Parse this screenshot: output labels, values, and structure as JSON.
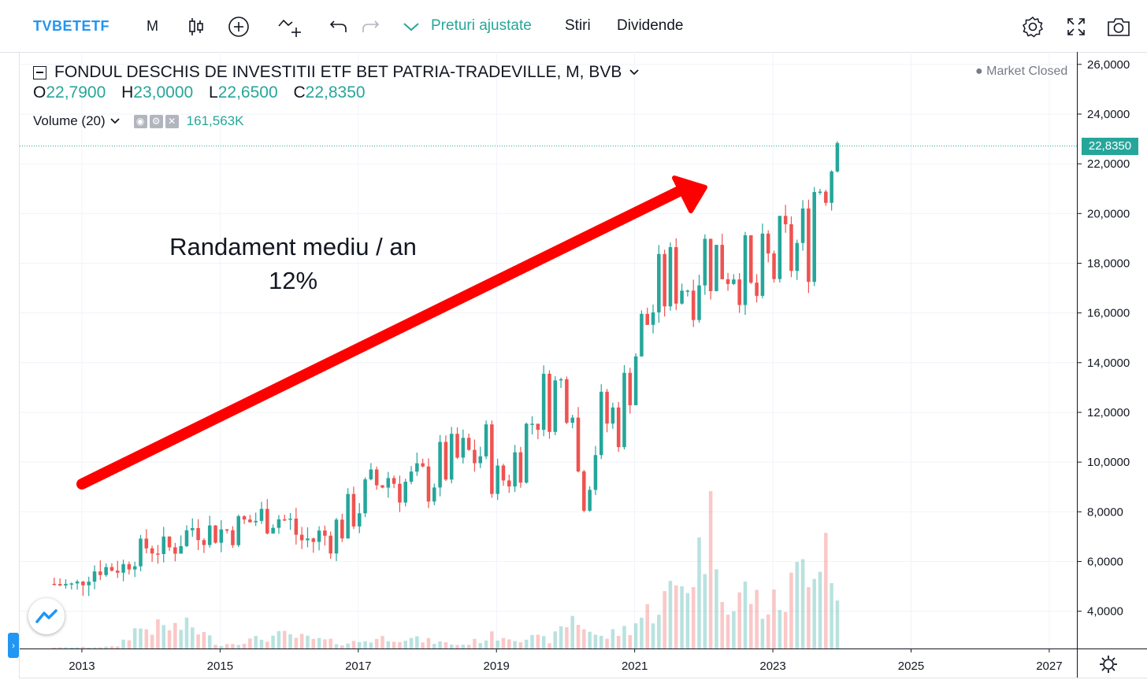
{
  "toolbar": {
    "symbol": "TVBETETF",
    "interval": "M",
    "adjusted_label": "Preturi ajustate",
    "news_label": "Stiri",
    "dividends_label": "Dividende",
    "icons": [
      "candles-icon",
      "add-indicator-icon",
      "compare-icon",
      "undo-icon",
      "redo-icon",
      "chevron-down-icon",
      "settings-icon",
      "fullscreen-icon",
      "camera-icon"
    ]
  },
  "legend": {
    "title": "FONDUL DESCHIS DE INVESTITII ETF BET PATRIA-TRADEVILLE, M, BVB",
    "o_label": "O",
    "o_value": "22,7900",
    "h_label": "H",
    "h_value": "23,0000",
    "l_label": "L",
    "l_value": "22,6500",
    "c_label": "C",
    "c_value": "22,8350",
    "volume_label": "Volume (20)",
    "volume_value": "161,563K",
    "market_status": "Market Closed"
  },
  "annotation": {
    "line1": "Randament mediu / an",
    "line2": "12%"
  },
  "last_price_tag": "22,8350",
  "colors": {
    "up": "#26a69a",
    "down": "#ef5350",
    "arrow": "#ff0000",
    "accent": "#2196f3"
  },
  "chart_data": {
    "type": "candlestick",
    "interval": "monthly",
    "y_tick_labels": [
      "4,0000",
      "6,0000",
      "8,0000",
      "10,0000",
      "12,0000",
      "14,0000",
      "16,0000",
      "18,0000",
      "20,0000",
      "22,0000",
      "24,0000",
      "26,0000"
    ],
    "x_tick_labels": [
      "2013",
      "2015",
      "2017",
      "2019",
      "2021",
      "2023",
      "2025",
      "2027"
    ],
    "ylim": [
      2.5,
      26.5
    ],
    "xlim": [
      2012.1,
      2027.4
    ],
    "x_ticks": [
      2013,
      2015,
      2017,
      2019,
      2021,
      2023,
      2025,
      2027
    ],
    "y_ticks": [
      4,
      6,
      8,
      10,
      12,
      14,
      16,
      18,
      20,
      22,
      24,
      26
    ],
    "last_close": 22.835,
    "volume_max": 8.5,
    "anchors": [
      [
        2012.6,
        5.1
      ],
      [
        2012.9,
        5.0
      ],
      [
        2013.2,
        5.7
      ],
      [
        2013.6,
        5.8
      ],
      [
        2013.9,
        6.6
      ],
      [
        2014.3,
        6.5
      ],
      [
        2014.6,
        7.4
      ],
      [
        2014.9,
        7.2
      ],
      [
        2015.2,
        7.3
      ],
      [
        2015.5,
        7.7
      ],
      [
        2015.8,
        7.9
      ],
      [
        2016.0,
        7.5
      ],
      [
        2016.2,
        6.8
      ],
      [
        2016.5,
        7.0
      ],
      [
        2016.8,
        7.6
      ],
      [
        2017.0,
        8.3
      ],
      [
        2017.4,
        9.5
      ],
      [
        2017.7,
        9.1
      ],
      [
        2017.9,
        9.0
      ],
      [
        2018.2,
        9.8
      ],
      [
        2018.6,
        10.2
      ],
      [
        2018.9,
        10.5
      ],
      [
        2019.0,
        8.9
      ],
      [
        2019.3,
        10.3
      ],
      [
        2019.6,
        12.3
      ],
      [
        2019.9,
        13.0
      ],
      [
        2020.1,
        13.2
      ],
      [
        2020.2,
        8.8
      ],
      [
        2020.5,
        11.5
      ],
      [
        2020.8,
        12.0
      ],
      [
        2021.0,
        14.5
      ],
      [
        2021.3,
        16.5
      ],
      [
        2021.6,
        17.6
      ],
      [
        2021.8,
        17.3
      ],
      [
        2022.0,
        18.5
      ],
      [
        2022.2,
        18.1
      ],
      [
        2022.5,
        18.4
      ],
      [
        2022.7,
        16.2
      ],
      [
        2022.9,
        17.6
      ],
      [
        2023.2,
        18.2
      ],
      [
        2023.5,
        18.9
      ],
      [
        2023.6,
        21.0
      ],
      [
        2023.8,
        22.2
      ],
      [
        2023.95,
        22.835
      ]
    ],
    "volume_anchors": [
      [
        2012.6,
        0.05
      ],
      [
        2013.5,
        0.1
      ],
      [
        2013.8,
        1.2
      ],
      [
        2014.6,
        1.3
      ],
      [
        2015.0,
        0.2
      ],
      [
        2015.9,
        0.8
      ],
      [
        2016.8,
        0.3
      ],
      [
        2017.5,
        0.7
      ],
      [
        2018.5,
        0.2
      ],
      [
        2019.0,
        0.8
      ],
      [
        2019.8,
        0.5
      ],
      [
        2020.1,
        1.9
      ],
      [
        2020.5,
        0.6
      ],
      [
        2020.9,
        1.2
      ],
      [
        2021.3,
        2.5
      ],
      [
        2021.6,
        3.5
      ],
      [
        2021.9,
        5.0
      ],
      [
        2022.1,
        8.4
      ],
      [
        2022.4,
        2.0
      ],
      [
        2022.6,
        3.5
      ],
      [
        2022.9,
        2.3
      ],
      [
        2023.2,
        3.0
      ],
      [
        2023.5,
        5.5
      ],
      [
        2023.8,
        7.2
      ],
      [
        2023.95,
        2.1
      ]
    ]
  }
}
